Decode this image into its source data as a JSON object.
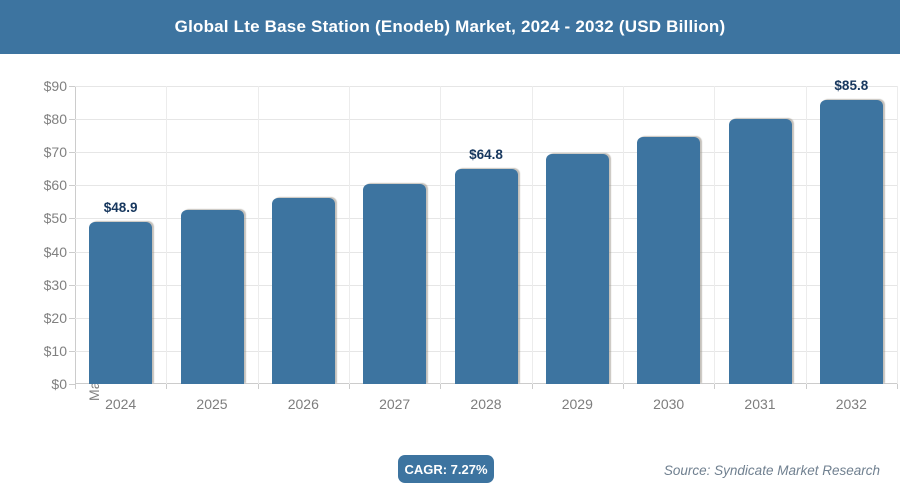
{
  "header": {
    "title": "Global Lte Base Station (Enodeb) Market, 2024 - 2032 (USD Billion)"
  },
  "footer": {
    "cagr_label": "CAGR: 7.27%",
    "source": "Source: Syndicate Market Research"
  },
  "colors": {
    "accent": "#3d74a0",
    "grid": "#e6e6e6",
    "axis": "#cccccc",
    "axis_text": "#808080",
    "data_label": "#17375e",
    "source_text": "#708090"
  },
  "chart_data": {
    "type": "bar",
    "title": "Global Lte Base Station (Enodeb) Market, 2024 - 2032 (USD Billion)",
    "categories": [
      "2024",
      "2025",
      "2026",
      "2027",
      "2028",
      "2029",
      "2030",
      "2031",
      "2032"
    ],
    "values": [
      48.9,
      52.4,
      56.2,
      60.3,
      64.8,
      69.4,
      74.5,
      79.9,
      85.8
    ],
    "data_labels": [
      "$48.9",
      null,
      null,
      null,
      "$64.8",
      null,
      null,
      null,
      "$85.8"
    ],
    "xlabel": "",
    "ylabel": "Market Size (USD Billion)",
    "ylim": [
      0,
      90
    ],
    "ytick_step": 10,
    "ytick_prefix": "$",
    "grid": true,
    "legend": false,
    "bar_color": "#3d74a0"
  }
}
